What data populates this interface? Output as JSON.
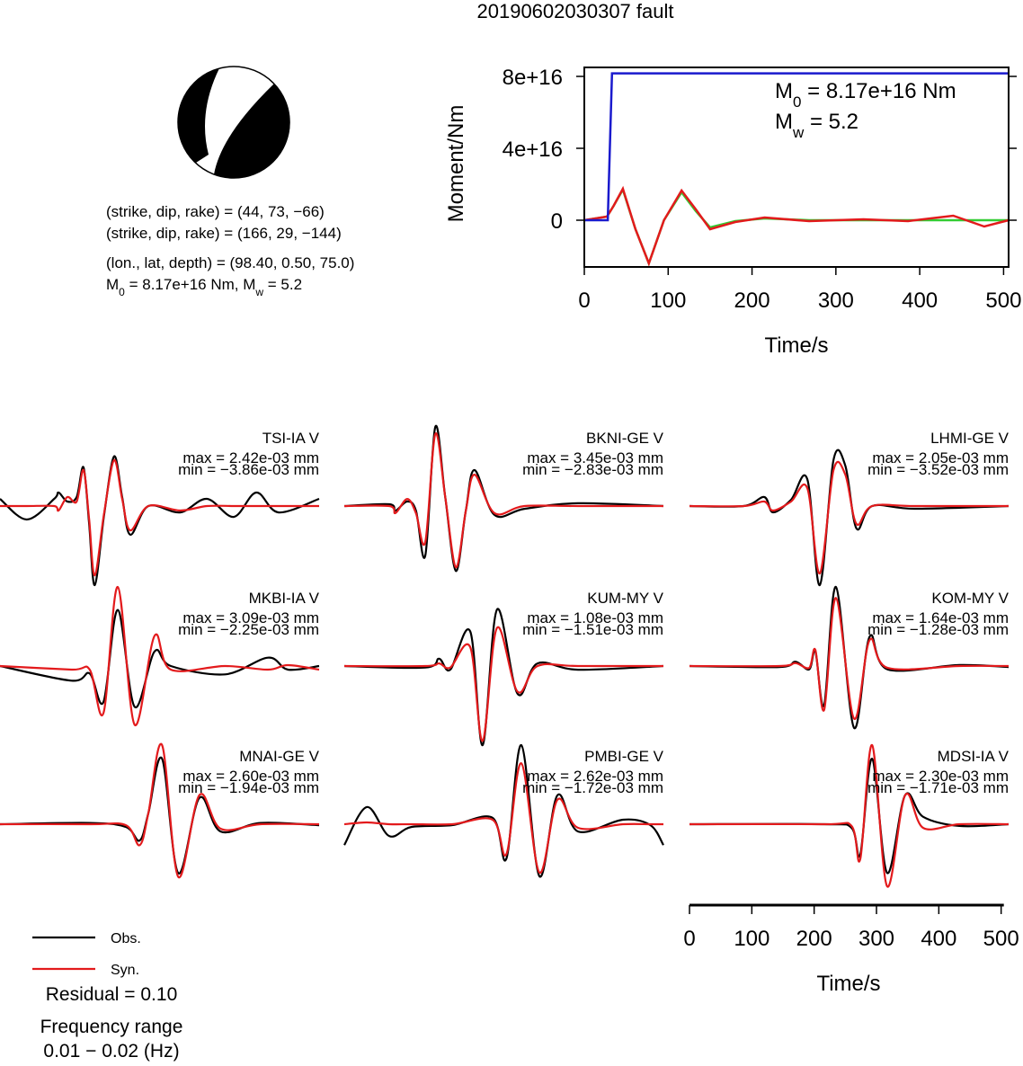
{
  "title": "20190602030307 fault",
  "focal_mechanism": {
    "lines": [
      {
        "parts": [
          {
            "text": "(strike, dip, rake) = (44, 73, −66)"
          }
        ]
      },
      {
        "parts": [
          {
            "text": "(strike, dip, rake) = (166, 29, −144)"
          }
        ]
      },
      {
        "parts": [
          {
            "text": "(lon., lat, depth) = (98.40, 0.50, 75.0)"
          }
        ]
      },
      {
        "parts": [
          {
            "text": "M"
          },
          {
            "sub": "0"
          },
          {
            "text": " = 8.17e+16 Nm, M"
          },
          {
            "sub": "w"
          },
          {
            "text": " = 5.2"
          }
        ]
      }
    ]
  },
  "notes": [
    "Residual = 0.10",
    "Frequency range",
    "0.01 − 0.02 (Hz)"
  ],
  "chart_data": [
    {
      "type": "line",
      "xlabel": "Time/s",
      "ylabel": "Moment/Nm",
      "xlim": [
        0,
        506
      ],
      "ylim": [
        -2.6e+16,
        8.5e+16
      ],
      "xticks": [
        0,
        100,
        200,
        300,
        400,
        500
      ],
      "yticks": [
        0,
        {
          "value": 4e+16,
          "label": "4e+16"
        },
        {
          "value": 8e+16,
          "label": "8e+16"
        }
      ],
      "annotations": [
        {
          "parts": [
            {
              "text": "M"
            },
            {
              "sub": "0"
            },
            {
              "text": " = 8.17e+16 Nm"
            }
          ]
        },
        {
          "parts": [
            {
              "text": "M"
            },
            {
              "sub": "w"
            },
            {
              "text": " = 5.2"
            }
          ]
        }
      ],
      "series": [
        {
          "color": "#33cc33",
          "x": [
            0,
            27,
            35,
            46,
            61,
            77,
            95,
            116,
            133,
            150,
            180,
            215,
            268,
            333,
            386,
            440,
            477,
            506
          ],
          "values": [
            0,
            2000000000000000.0,
            8000000000000000.0,
            1.7e+16,
            -5000000000000000.0,
            -2.4e+16,
            0,
            1.55e+16,
            5000000000000000.0,
            -4000000000000000.0,
            -500000000000000.0,
            1000000000000000.0,
            0,
            0,
            0,
            0,
            0,
            0
          ]
        },
        {
          "color": "#e31a1c",
          "x": [
            0,
            27,
            35,
            46,
            61,
            77,
            95,
            116,
            133,
            150,
            180,
            215,
            268,
            333,
            386,
            440,
            477,
            506
          ],
          "values": [
            0,
            2000000000000000.0,
            8000000000000000.0,
            1.75e+16,
            -5000000000000000.0,
            -2.4e+16,
            0,
            1.65e+16,
            6000000000000000.0,
            -5000000000000000.0,
            -1000000000000000.0,
            1500000000000000.0,
            -500000000000000.0,
            500000000000000.0,
            -500000000000000.0,
            2500000000000000.0,
            -3500000000000000.0,
            0
          ]
        },
        {
          "color": "#1a1acd",
          "x": [
            0,
            28,
            33,
            506
          ],
          "values": [
            0,
            0,
            8.17e+16,
            8.17e+16
          ]
        }
      ]
    },
    {
      "type": "wave",
      "title": "TSI-IA V",
      "annotations": [
        "max = 2.42e-03 mm",
        "min = −3.86e-03 mm"
      ],
      "xlim": [
        0,
        512
      ],
      "x": [
        0,
        43,
        87,
        94,
        108,
        123,
        134,
        143,
        152,
        167,
        183,
        196,
        209,
        238,
        289,
        332,
        375,
        411,
        447,
        512
      ],
      "series": [
        {
          "name": "Obs.",
          "color": "#000000",
          "values": [
            0.00035,
            -0.00066,
            0.00035,
            0.00066,
            0.00022,
            0.00044,
            0.00189,
            -0.00088,
            -0.00386,
            -0.00044,
            0.00242,
            0.00044,
            -0.0014,
            0,
            -0.00031,
            0.00035,
            -0.00053,
            0.00066,
            -0.00031,
            0.00035
          ]
        },
        {
          "name": "Syn.",
          "color": "#e31a1c",
          "values": [
            0,
            0,
            0,
            -0.00022,
            0.00044,
            0.00022,
            0.00176,
            -0.00066,
            -0.00338,
            -0.00035,
            0.00224,
            0.00035,
            -0.00119,
            0,
            -0.00022,
            0,
            0,
            0,
            0,
            0
          ]
        }
      ]
    },
    {
      "type": "wave",
      "title": "BKNI-GE V",
      "annotations": [
        "max = 3.45e-03 mm",
        "min = −2.83e-03 mm"
      ],
      "xlim": [
        0,
        512
      ],
      "x": [
        0,
        72,
        82,
        101,
        115,
        130,
        146,
        162,
        179,
        195,
        209,
        241,
        289,
        375,
        512
      ],
      "series": [
        {
          "name": "Obs.",
          "color": "#000000",
          "values": [
            0,
            8e-05,
            -0.0002,
            0.0002,
            -0.0002,
            -0.00216,
            0.00345,
            0.00039,
            -0.00283,
            -0.0002,
            0.00157,
            -0.00039,
            -0.00012,
            0.00012,
            0
          ]
        },
        {
          "name": "Syn.",
          "color": "#e31a1c",
          "values": [
            0,
            0,
            -0.00031,
            0.00031,
            -0.00031,
            -0.00157,
            0.00314,
            0.00039,
            -0.00267,
            -0.0002,
            0.00137,
            -0.00031,
            0,
            0,
            0
          ]
        }
      ]
    },
    {
      "type": "wave",
      "title": "LHMI-GE V",
      "annotations": [
        "max = 2.05e-03 mm",
        "min = −3.52e-03 mm"
      ],
      "xlim": [
        0,
        512
      ],
      "x": [
        0,
        87,
        120,
        134,
        163,
        189,
        209,
        231,
        250,
        268,
        293,
        361,
        512
      ],
      "series": [
        {
          "name": "Obs.",
          "color": "#000000",
          "values": [
            0,
            0,
            0.0004,
            -0.00028,
            0.00028,
            0.0012,
            -0.00352,
            0.00205,
            0.0018,
            -0.001,
            0,
            -0.00012,
            0
          ]
        },
        {
          "name": "Syn.",
          "color": "#e31a1c",
          "values": [
            0,
            0,
            0.0002,
            -0.0002,
            0.0002,
            0.0008,
            -0.003,
            0.0016,
            0.0014,
            -0.0008,
            0,
            0,
            0
          ]
        }
      ]
    },
    {
      "type": "wave",
      "title": "MKBI-IA V",
      "annotations": [
        "max = 3.09e-03 mm",
        "min = −2.25e-03 mm"
      ],
      "xlim": [
        0,
        512
      ],
      "x": [
        0,
        115,
        144,
        166,
        189,
        216,
        248,
        274,
        361,
        430,
        462,
        512
      ],
      "series": [
        {
          "name": "Obs.",
          "color": "#000000",
          "values": [
            0,
            -0.00081,
            -0.00041,
            -0.00198,
            0.00309,
            -0.00225,
            0.00081,
            0,
            -0.00046,
            0.00046,
            -0.0002,
            0
          ]
        },
        {
          "name": "Syn.",
          "color": "#e31a1c",
          "values": [
            0,
            -0.0002,
            -0.0002,
            -0.00259,
            0.00436,
            -0.00324,
            0.00167,
            -0.0002,
            0,
            -0.0002,
            5e-05,
            -0.0002
          ]
        }
      ]
    },
    {
      "type": "wave",
      "title": "KUM-MY V",
      "annotations": [
        "max = 1.08e-03 mm",
        "min = −1.51e-03 mm"
      ],
      "xlim": [
        0,
        512
      ],
      "x": [
        0,
        130,
        152,
        170,
        202,
        222,
        245,
        278,
        310,
        375,
        512
      ],
      "series": [
        {
          "name": "Obs.",
          "color": "#000000",
          "values": [
            0,
            -3e-05,
            0.00014,
            -7e-05,
            0.00066,
            -0.00151,
            0.00108,
            -0.00053,
            5e-05,
            -7e-05,
            0
          ]
        },
        {
          "name": "Syn.",
          "color": "#e31a1c",
          "values": [
            0,
            0,
            5e-05,
            -3e-05,
            0.00036,
            -0.00143,
            0.00073,
            -0.00049,
            0,
            0,
            0
          ]
        }
      ]
    },
    {
      "type": "wave",
      "title": "KOM-MY V",
      "annotations": [
        "max = 1.64e-03 mm",
        "min = −1.28e-03 mm"
      ],
      "xlim": [
        0,
        512
      ],
      "x": [
        0,
        144,
        170,
        192,
        202,
        216,
        235,
        264,
        289,
        318,
        433,
        512
      ],
      "series": [
        {
          "name": "Obs.",
          "color": "#000000",
          "values": [
            0,
            -2e-05,
            9e-05,
            -7e-05,
            0.0003,
            -0.00081,
            0.00164,
            -0.00128,
            0.00061,
            -7e-05,
            2e-05,
            -2e-05
          ]
        },
        {
          "name": "Syn.",
          "color": "#e31a1c",
          "values": [
            0,
            0,
            6e-05,
            -4e-05,
            0.00033,
            -0.00091,
            0.00141,
            -0.00109,
            0.00054,
            -4e-05,
            0,
            0
          ]
        }
      ]
    },
    {
      "type": "wave",
      "title": "MNAI-GE V",
      "annotations": [
        "max = 2.60e-03 mm",
        "min = −1.94e-03 mm"
      ],
      "xlim": [
        0,
        512
      ],
      "x": [
        0,
        144,
        202,
        224,
        238,
        260,
        286,
        320,
        354,
        418,
        512
      ],
      "series": [
        {
          "name": "Obs.",
          "color": "#000000",
          "values": [
            0,
            5e-05,
            -0.00011,
            -0.00065,
            0.00043,
            0.0026,
            -0.00194,
            0.00105,
            -0.00029,
            5e-05,
            -4e-05
          ]
        },
        {
          "name": "Syn.",
          "color": "#e31a1c",
          "values": [
            0,
            0,
            -4e-05,
            -0.00083,
            0.00043,
            0.00314,
            -0.00209,
            0.00116,
            -0.00018,
            0,
            0
          ]
        }
      ]
    },
    {
      "type": "wave",
      "title": "PMBI-GE V",
      "annotations": [
        "max = 2.62e-03 mm",
        "min = −1.72e-03 mm"
      ],
      "xlim": [
        0,
        512
      ],
      "x": [
        0,
        36,
        72,
        108,
        173,
        238,
        260,
        284,
        313,
        342,
        375,
        447,
        491,
        512
      ],
      "series": [
        {
          "name": "Obs.",
          "color": "#000000",
          "values": [
            -0.00069,
            0.00057,
            -0.00039,
            -9e-05,
            -3e-05,
            0.00021,
            -0.00114,
            0.00262,
            -0.00172,
            0.00096,
            -0.00024,
            0.00015,
            -3e-05,
            -0.00069
          ]
        },
        {
          "name": "Syn.",
          "color": "#e31a1c",
          "values": [
            0,
            6e-05,
            0,
            0,
            0,
            0.00015,
            -0.00099,
            0.00202,
            -0.0016,
            0.00081,
            -0.00012,
            0,
            0,
            0
          ]
        }
      ]
    },
    {
      "type": "wave",
      "title": "MDSI-IA V",
      "annotations": [
        "max = 2.30e-03 mm",
        "min = −1.71e-03 mm"
      ],
      "xlim": [
        0,
        512
      ],
      "xticks": [
        0,
        100,
        200,
        300,
        400,
        500
      ],
      "xlabel": "Time/s",
      "x": [
        0,
        216,
        260,
        274,
        293,
        317,
        346,
        375,
        433,
        512
      ],
      "series": [
        {
          "name": "Obs.",
          "color": "#000000",
          "values": [
            0,
            0,
            -0.00013,
            -0.00106,
            0.0023,
            -0.00171,
            0.00102,
            0.00026,
            -6e-05,
            0
          ]
        },
        {
          "name": "Syn.",
          "color": "#e31a1c",
          "values": [
            0,
            0,
            -6e-05,
            -0.00122,
            0.00278,
            -0.00218,
            0.00102,
            -0.00013,
            0,
            0
          ]
        }
      ]
    }
  ]
}
